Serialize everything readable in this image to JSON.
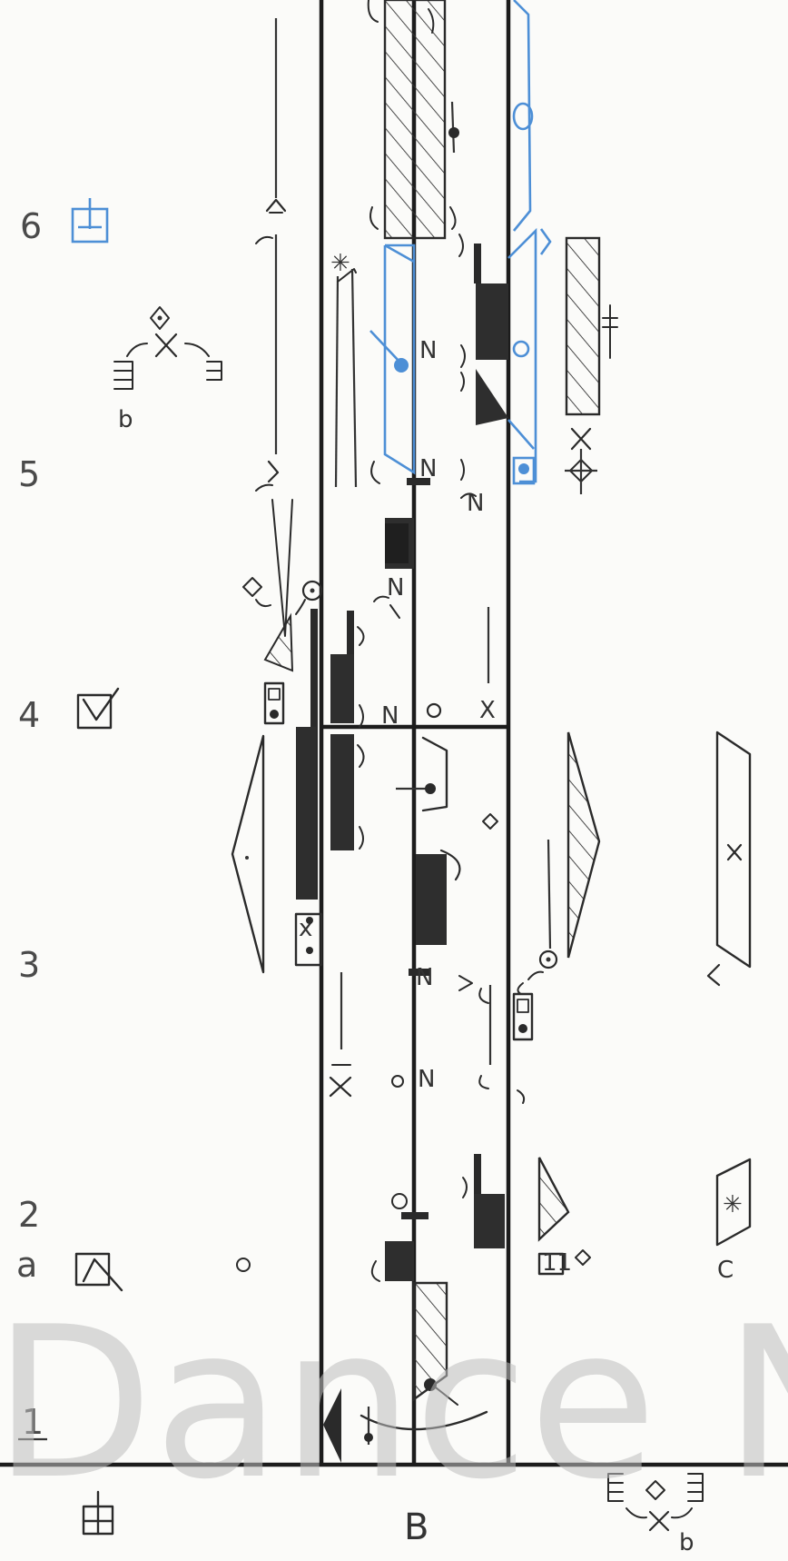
{
  "measures": [
    "1",
    "a",
    "2",
    "3",
    "4",
    "5",
    "6"
  ],
  "staff_label": "B",
  "side_label": "b",
  "corner_label": "C",
  "watermark": "Dance No",
  "icons": {
    "start_position": "start-position-icon",
    "front_sign": "front-sign-icon",
    "hold": "hold-icon",
    "pin": "pin-icon"
  },
  "colors": {
    "ink": "#2a2a2a",
    "blue": "#4d8fd6",
    "paper": "#fbfbf9",
    "watermark": "#bdbdbd"
  }
}
